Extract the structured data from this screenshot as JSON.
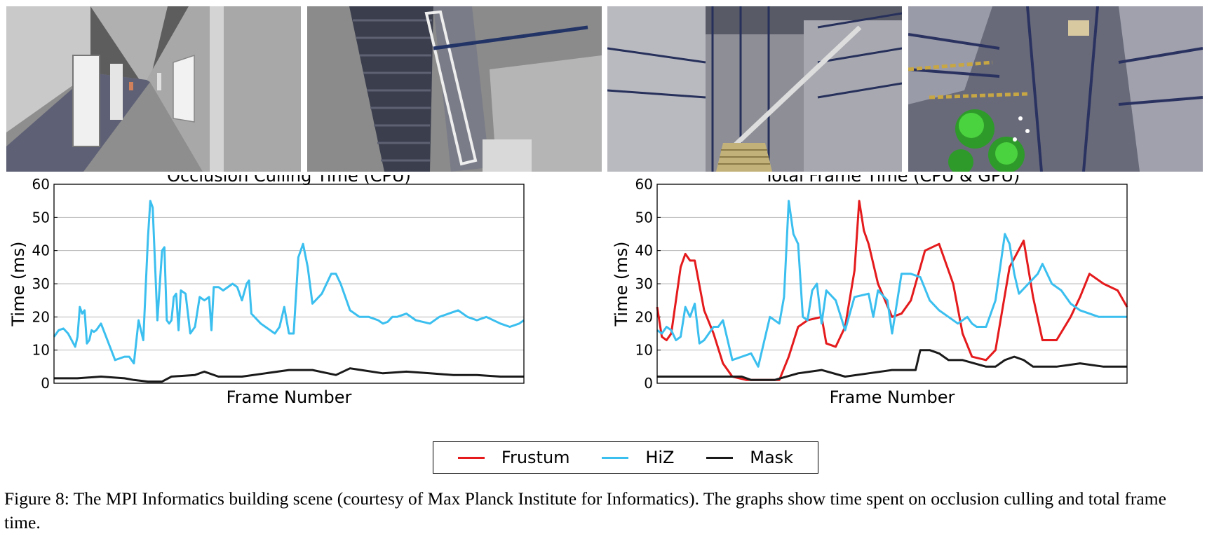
{
  "renders": [
    {
      "name": "corridor-render"
    },
    {
      "name": "staircase-render"
    },
    {
      "name": "atrium-stairs-render"
    },
    {
      "name": "atrium-overview-render"
    }
  ],
  "legend": {
    "items": [
      {
        "name": "Frustum",
        "color": "#e41a1c"
      },
      {
        "name": "HiZ",
        "color": "#3bbfef"
      },
      {
        "name": "Mask",
        "color": "#1a1a1a"
      }
    ]
  },
  "caption": "Figure 8: The MPI Informatics building scene (courtesy of Max Planck Institute for Informatics). The graphs show time spent on occlusion culling and total frame time.",
  "chart_data": [
    {
      "type": "line",
      "title": "Occlusion Culling Time (CPU)",
      "xlabel": "Frame Number",
      "ylabel": "Time (ms)",
      "ylim": [
        0,
        60
      ],
      "yticks": [
        0,
        10,
        20,
        30,
        40,
        50,
        60
      ],
      "grid": "horizontal",
      "xlim": [
        0,
        1
      ],
      "series": [
        {
          "name": "HiZ",
          "color": "#3bbfef",
          "x": [
            0,
            0.01,
            0.02,
            0.03,
            0.045,
            0.05,
            0.055,
            0.06,
            0.065,
            0.07,
            0.075,
            0.08,
            0.085,
            0.09,
            0.1,
            0.13,
            0.14,
            0.15,
            0.16,
            0.17,
            0.18,
            0.19,
            0.2,
            0.205,
            0.21,
            0.22,
            0.23,
            0.235,
            0.24,
            0.245,
            0.25,
            0.255,
            0.26,
            0.265,
            0.27,
            0.28,
            0.29,
            0.3,
            0.31,
            0.32,
            0.33,
            0.335,
            0.34,
            0.35,
            0.36,
            0.38,
            0.39,
            0.4,
            0.41,
            0.415,
            0.42,
            0.44,
            0.47,
            0.48,
            0.49,
            0.5,
            0.51,
            0.52,
            0.53,
            0.54,
            0.55,
            0.57,
            0.59,
            0.6,
            0.61,
            0.62,
            0.63,
            0.65,
            0.67,
            0.69,
            0.7,
            0.71,
            0.72,
            0.73,
            0.75,
            0.77,
            0.8,
            0.82,
            0.84,
            0.86,
            0.88,
            0.9,
            0.92,
            0.95,
            0.97,
            0.99,
            1.0
          ],
          "y": [
            14,
            16,
            16.5,
            15,
            11,
            14,
            23,
            21,
            22,
            12,
            13,
            16,
            15.5,
            16,
            18,
            7,
            7.5,
            8,
            8,
            6,
            19,
            13,
            44,
            55,
            53,
            19,
            40,
            41,
            19,
            18,
            19,
            26,
            27,
            16,
            28,
            27,
            15,
            17,
            26,
            25,
            26,
            16,
            29,
            29,
            28,
            30,
            29,
            25,
            30,
            31,
            21,
            18,
            15,
            17,
            23,
            15,
            15,
            38,
            42,
            35,
            24,
            27,
            33,
            33,
            30,
            26,
            22,
            20,
            20,
            19,
            18,
            18.5,
            20,
            20,
            21,
            19,
            18,
            20,
            21,
            22,
            20,
            19,
            20,
            18,
            17,
            18,
            19
          ]
        },
        {
          "name": "Mask",
          "color": "#1a1a1a",
          "x": [
            0,
            0.05,
            0.1,
            0.15,
            0.17,
            0.2,
            0.23,
            0.25,
            0.3,
            0.32,
            0.35,
            0.4,
            0.45,
            0.5,
            0.55,
            0.6,
            0.63,
            0.7,
            0.75,
            0.8,
            0.85,
            0.9,
            0.95,
            1.0
          ],
          "y": [
            1.5,
            1.5,
            2,
            1.5,
            1,
            0.5,
            0.5,
            2,
            2.5,
            3.5,
            2,
            2,
            3,
            4,
            4,
            2.5,
            4.5,
            3,
            3.5,
            3,
            2.5,
            2.5,
            2,
            2
          ]
        }
      ]
    },
    {
      "type": "line",
      "title": "Total Frame Time (CPU & GPU)",
      "xlabel": "Frame Number",
      "ylabel": "Time (ms)",
      "ylim": [
        0,
        60
      ],
      "yticks": [
        0,
        10,
        20,
        30,
        40,
        50,
        60
      ],
      "grid": "horizontal",
      "xlim": [
        0,
        1
      ],
      "series": [
        {
          "name": "Frustum",
          "color": "#e41a1c",
          "x": [
            0,
            0.01,
            0.02,
            0.03,
            0.05,
            0.06,
            0.07,
            0.08,
            0.1,
            0.12,
            0.14,
            0.16,
            0.19,
            0.22,
            0.24,
            0.26,
            0.28,
            0.3,
            0.32,
            0.35,
            0.36,
            0.38,
            0.4,
            0.42,
            0.43,
            0.44,
            0.45,
            0.47,
            0.5,
            0.52,
            0.54,
            0.57,
            0.6,
            0.63,
            0.65,
            0.67,
            0.7,
            0.72,
            0.75,
            0.78,
            0.8,
            0.82,
            0.85,
            0.88,
            0.9,
            0.92,
            0.95,
            0.98,
            1.0
          ],
          "y": [
            23,
            14,
            13,
            15,
            35,
            39,
            37,
            37,
            22,
            15,
            6,
            2,
            1,
            1,
            1,
            1,
            8,
            17,
            19,
            20,
            12,
            11,
            17,
            34,
            55,
            46,
            42,
            30,
            20,
            21,
            25,
            40,
            42,
            30,
            15,
            8,
            7,
            10,
            35,
            43,
            26,
            13,
            13,
            20,
            26,
            33,
            30,
            28,
            23
          ]
        },
        {
          "name": "HiZ",
          "color": "#3bbfef",
          "x": [
            0,
            0.01,
            0.02,
            0.03,
            0.04,
            0.05,
            0.06,
            0.07,
            0.08,
            0.09,
            0.1,
            0.12,
            0.13,
            0.14,
            0.16,
            0.18,
            0.2,
            0.215,
            0.22,
            0.24,
            0.26,
            0.27,
            0.28,
            0.29,
            0.3,
            0.31,
            0.32,
            0.33,
            0.34,
            0.35,
            0.36,
            0.38,
            0.4,
            0.42,
            0.45,
            0.46,
            0.47,
            0.49,
            0.5,
            0.52,
            0.54,
            0.56,
            0.58,
            0.6,
            0.62,
            0.64,
            0.66,
            0.67,
            0.68,
            0.7,
            0.72,
            0.74,
            0.75,
            0.76,
            0.77,
            0.79,
            0.81,
            0.82,
            0.84,
            0.86,
            0.88,
            0.9,
            0.92,
            0.94,
            0.96,
            0.98,
            1.0
          ],
          "y": [
            16,
            15,
            17,
            16,
            13,
            14,
            23,
            20,
            24,
            12,
            13,
            17,
            17,
            19,
            7,
            8,
            9,
            5,
            8,
            20,
            18,
            26,
            55,
            45,
            42,
            20,
            19,
            28,
            30,
            18,
            28,
            25,
            16,
            26,
            27,
            20,
            28,
            25,
            15,
            33,
            33,
            32,
            25,
            22,
            20,
            18,
            20,
            18,
            17,
            17,
            25,
            45,
            42,
            33,
            27,
            30,
            33,
            36,
            30,
            28,
            24,
            22,
            21,
            20,
            20,
            20,
            20
          ]
        },
        {
          "name": "Mask",
          "color": "#1a1a1a",
          "x": [
            0,
            0.05,
            0.1,
            0.15,
            0.18,
            0.2,
            0.22,
            0.25,
            0.3,
            0.35,
            0.4,
            0.45,
            0.5,
            0.55,
            0.56,
            0.58,
            0.6,
            0.62,
            0.65,
            0.7,
            0.72,
            0.74,
            0.76,
            0.78,
            0.8,
            0.85,
            0.9,
            0.95,
            1.0
          ],
          "y": [
            2,
            2,
            2,
            2,
            2,
            1,
            1,
            1,
            3,
            4,
            2,
            3,
            4,
            4,
            10,
            10,
            9,
            7,
            7,
            5,
            5,
            7,
            8,
            7,
            5,
            5,
            6,
            5,
            5
          ]
        }
      ]
    }
  ]
}
